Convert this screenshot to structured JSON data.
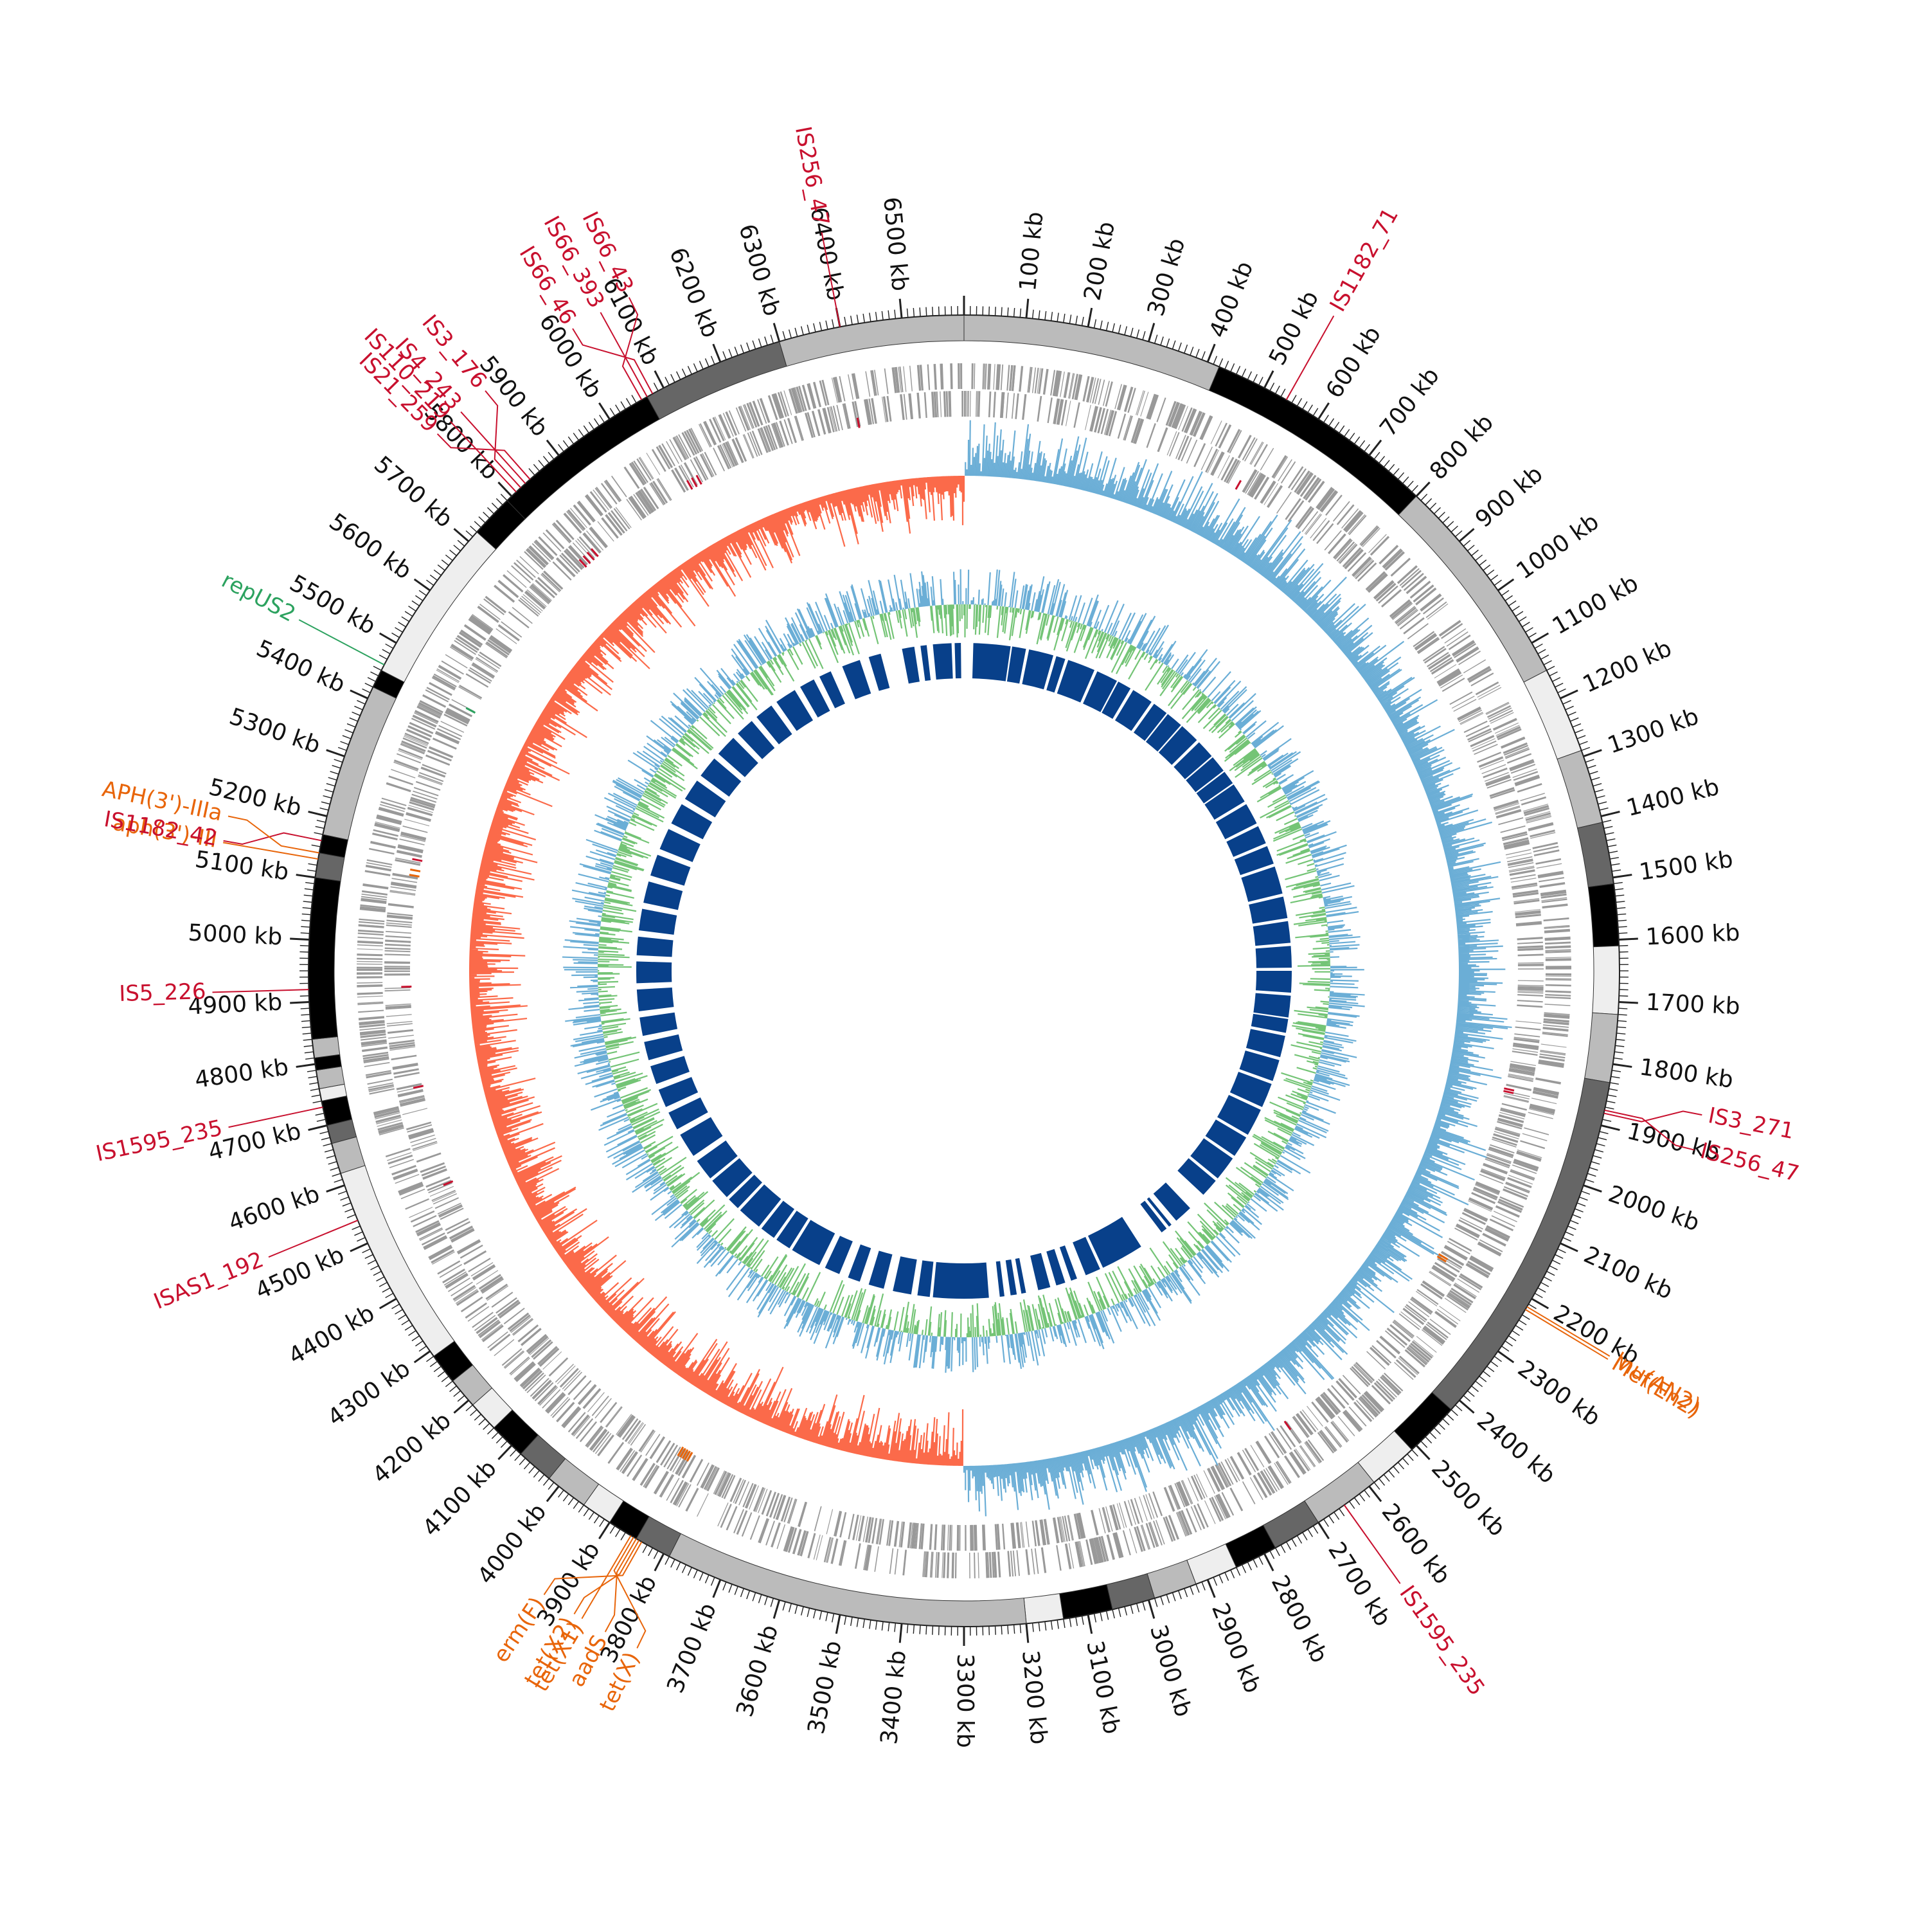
{
  "genome": {
    "total_kb": 6600,
    "tick_labels": [
      "100 kb",
      "200 kb",
      "300 kb",
      "400 kb",
      "500 kb",
      "600 kb",
      "700 kb",
      "800 kb",
      "900 kb",
      "1000 kb",
      "1100 kb",
      "1200 kb",
      "1300 kb",
      "1400 kb",
      "1500 kb",
      "1600 kb",
      "1700 kb",
      "1800 kb",
      "1900 kb",
      "2000 kb",
      "2100 kb",
      "2200 kb",
      "2300 kb",
      "2400 kb",
      "2500 kb",
      "2600 kb",
      "2700 kb",
      "2800 kb",
      "2900 kb",
      "3000 kb",
      "3100 kb",
      "3200 kb",
      "3300 kb",
      "3400 kb",
      "3500 kb",
      "3600 kb",
      "3700 kb",
      "3800 kb",
      "3900 kb",
      "4000 kb",
      "4100 kb",
      "4200 kb",
      "4300 kb",
      "4400 kb",
      "4500 kb",
      "4600 kb",
      "4700 kb",
      "4800 kb",
      "4900 kb",
      "5000 kb",
      "5100 kb",
      "5200 kb",
      "5300 kb",
      "5400 kb",
      "5500 kb",
      "5600 kb",
      "5700 kb",
      "5800 kb",
      "5900 kb",
      "6000 kb",
      "6100 kb",
      "6200 kb",
      "6300 kb",
      "6400 kb",
      "6500 kb"
    ]
  },
  "contigs": [
    {
      "start": 0,
      "end": 420,
      "shade": "#bbbbbb"
    },
    {
      "start": 420,
      "end": 800,
      "shade": "#000000"
    },
    {
      "start": 800,
      "end": 1150,
      "shade": "#bbbbbb"
    },
    {
      "start": 1150,
      "end": 1290,
      "shade": "#eeeeee"
    },
    {
      "start": 1290,
      "end": 1410,
      "shade": "#bbbbbb"
    },
    {
      "start": 1410,
      "end": 1510,
      "shade": "#666666"
    },
    {
      "start": 1510,
      "end": 1610,
      "shade": "#000000"
    },
    {
      "start": 1610,
      "end": 1720,
      "shade": "#eeeeee"
    },
    {
      "start": 1720,
      "end": 1830,
      "shade": "#bbbbbb"
    },
    {
      "start": 1830,
      "end": 2420,
      "shade": "#666666"
    },
    {
      "start": 2420,
      "end": 2510,
      "shade": "#000000"
    },
    {
      "start": 2510,
      "end": 2590,
      "shade": "#eeeeee"
    },
    {
      "start": 2590,
      "end": 2700,
      "shade": "#bbbbbb"
    },
    {
      "start": 2700,
      "end": 2780,
      "shade": "#666666"
    },
    {
      "start": 2780,
      "end": 2850,
      "shade": "#000000"
    },
    {
      "start": 2850,
      "end": 2920,
      "shade": "#eeeeee"
    },
    {
      "start": 2920,
      "end": 2990,
      "shade": "#bbbbbb"
    },
    {
      "start": 2990,
      "end": 3060,
      "shade": "#666666"
    },
    {
      "start": 3060,
      "end": 3140,
      "shade": "#000000"
    },
    {
      "start": 3140,
      "end": 3200,
      "shade": "#eeeeee"
    },
    {
      "start": 3200,
      "end": 3790,
      "shade": "#bbbbbb"
    },
    {
      "start": 3790,
      "end": 3850,
      "shade": "#666666"
    },
    {
      "start": 3850,
      "end": 3900,
      "shade": "#000000"
    },
    {
      "start": 3900,
      "end": 3950,
      "shade": "#eeeeee"
    },
    {
      "start": 3950,
      "end": 4020,
      "shade": "#bbbbbb"
    },
    {
      "start": 4020,
      "end": 4080,
      "shade": "#666666"
    },
    {
      "start": 4080,
      "end": 4140,
      "shade": "#000000"
    },
    {
      "start": 4140,
      "end": 4190,
      "shade": "#eeeeee"
    },
    {
      "start": 4190,
      "end": 4240,
      "shade": "#bbbbbb"
    },
    {
      "start": 4240,
      "end": 4290,
      "shade": "#000000"
    },
    {
      "start": 4290,
      "end": 4620,
      "shade": "#eeeeee"
    },
    {
      "start": 4620,
      "end": 4670,
      "shade": "#bbbbbb"
    },
    {
      "start": 4670,
      "end": 4700,
      "shade": "#666666"
    },
    {
      "start": 4700,
      "end": 4740,
      "shade": "#000000"
    },
    {
      "start": 4740,
      "end": 4760,
      "shade": "#eeeeee"
    },
    {
      "start": 4760,
      "end": 4790,
      "shade": "#bbbbbb"
    },
    {
      "start": 4790,
      "end": 4810,
      "shade": "#000000"
    },
    {
      "start": 4810,
      "end": 4840,
      "shade": "#bbbbbb"
    },
    {
      "start": 4840,
      "end": 5100,
      "shade": "#000000"
    },
    {
      "start": 5100,
      "end": 5140,
      "shade": "#666666"
    },
    {
      "start": 5140,
      "end": 5170,
      "shade": "#000000"
    },
    {
      "start": 5170,
      "end": 5420,
      "shade": "#bbbbbb"
    },
    {
      "start": 5420,
      "end": 5450,
      "shade": "#000000"
    },
    {
      "start": 5450,
      "end": 5720,
      "shade": "#eeeeee"
    },
    {
      "start": 5720,
      "end": 5790,
      "shade": "#000000"
    },
    {
      "start": 5790,
      "end": 6070,
      "shade": "#000000"
    },
    {
      "start": 6070,
      "end": 6300,
      "shade": "#666666"
    },
    {
      "start": 6300,
      "end": 6600,
      "shade": "#bbbbbb"
    }
  ],
  "tracks": {
    "gene_ring_color": "#999999",
    "gc_skew_positive": "#6baed6",
    "gc_skew_negative": "#fb6a4a",
    "gc_content_high": "#6baed6",
    "gc_content_low": "#74c476",
    "inner_blocks_color": "#08408a",
    "inner_blocks": [
      [
        30,
        150
      ],
      [
        155,
        200
      ],
      [
        210,
        290
      ],
      [
        300,
        330
      ],
      [
        340,
        430
      ],
      [
        440,
        510
      ],
      [
        515,
        560
      ],
      [
        570,
        640
      ],
      [
        650,
        700
      ],
      [
        705,
        760
      ],
      [
        765,
        830
      ],
      [
        840,
        900
      ],
      [
        905,
        960
      ],
      [
        965,
        1010
      ],
      [
        1015,
        1080
      ],
      [
        1090,
        1160
      ],
      [
        1170,
        1230
      ],
      [
        1240,
        1300
      ],
      [
        1310,
        1400
      ],
      [
        1410,
        1480
      ],
      [
        1490,
        1560
      ],
      [
        1570,
        1640
      ],
      [
        1650,
        1720
      ],
      [
        1730,
        1800
      ],
      [
        1805,
        1850
      ],
      [
        1860,
        1930
      ],
      [
        1940,
        2010
      ],
      [
        2020,
        2100
      ],
      [
        2110,
        2200
      ],
      [
        2210,
        2280
      ],
      [
        2290,
        2370
      ],
      [
        2380,
        2440
      ],
      [
        2500,
        2560
      ],
      [
        2580,
        2590
      ],
      [
        2600,
        2620
      ],
      [
        2700,
        2840
      ],
      [
        2850,
        2900
      ],
      [
        2930,
        2950
      ],
      [
        2970,
        3000
      ],
      [
        3020,
        3060
      ],
      [
        3100,
        3115
      ],
      [
        3130,
        3150
      ],
      [
        3170,
        3185
      ],
      [
        3220,
        3400
      ],
      [
        3410,
        3450
      ],
      [
        3470,
        3530
      ],
      [
        3560,
        3610
      ],
      [
        3640,
        3680
      ],
      [
        3710,
        3760
      ],
      [
        3780,
        3880
      ],
      [
        3890,
        3940
      ],
      [
        3950,
        4000
      ],
      [
        4010,
        4090
      ],
      [
        4100,
        4140
      ],
      [
        4150,
        4220
      ],
      [
        4230,
        4300
      ],
      [
        4320,
        4400
      ],
      [
        4420,
        4480
      ],
      [
        4500,
        4560
      ],
      [
        4580,
        4640
      ],
      [
        4660,
        4720
      ],
      [
        4740,
        4800
      ],
      [
        4820,
        4890
      ],
      [
        4910,
        4980
      ],
      [
        5000,
        5060
      ],
      [
        5080,
        5150
      ],
      [
        5170,
        5240
      ],
      [
        5260,
        5330
      ],
      [
        5350,
        5420
      ],
      [
        5440,
        5510
      ],
      [
        5530,
        5600
      ],
      [
        5620,
        5690
      ],
      [
        5710,
        5780
      ],
      [
        5800,
        5860
      ],
      [
        5880,
        5940
      ],
      [
        5960,
        6030
      ],
      [
        6050,
        6100
      ],
      [
        6120,
        6160
      ],
      [
        6200,
        6260
      ],
      [
        6290,
        6330
      ],
      [
        6400,
        6440
      ],
      [
        6460,
        6480
      ],
      [
        6500,
        6560
      ],
      [
        6570,
        6590
      ]
    ]
  },
  "annotations": [
    {
      "label": "IS256_47",
      "pos": 6400,
      "color": "#c8102e",
      "dir": -1
    },
    {
      "label": "IS66_46",
      "pos": 6080,
      "color": "#c8102e",
      "dir": -1
    },
    {
      "label": "IS66_393",
      "pos": 6070,
      "color": "#c8102e",
      "dir": -1
    },
    {
      "label": "IS66_43",
      "pos": 6060,
      "color": "#c8102e",
      "dir": -1
    },
    {
      "label": "IS21_259",
      "pos": 5840,
      "color": "#c8102e",
      "dir": -1
    },
    {
      "label": "IS4_243",
      "pos": 5830,
      "color": "#c8102e",
      "dir": -1
    },
    {
      "label": "IS3_176",
      "pos": 5820,
      "color": "#c8102e",
      "dir": -1
    },
    {
      "label": "IS110_219",
      "pos": 5810,
      "color": "#c8102e",
      "dir": -1
    },
    {
      "label": "repUS2",
      "pos": 5460,
      "color": "#2ca25f",
      "dir": -1
    },
    {
      "label": "IS1182_42",
      "pos": 5160,
      "color": "#c8102e",
      "dir": -1
    },
    {
      "label": "APH(3')-IIIa",
      "pos": 5140,
      "color": "#e8650a",
      "dir": -1
    },
    {
      "label": "aph(3')-III",
      "pos": 5130,
      "color": "#e8650a",
      "dir": -1
    },
    {
      "label": "IS5_226",
      "pos": 4920,
      "color": "#c8102e",
      "dir": -1
    },
    {
      "label": "IS1595_235",
      "pos": 4730,
      "color": "#c8102e",
      "dir": -1
    },
    {
      "label": "ISAS1_192",
      "pos": 4540,
      "color": "#c8102e",
      "dir": -1
    },
    {
      "label": "tet(X1)",
      "pos": 3860,
      "color": "#e8650a",
      "dir": -1
    },
    {
      "label": "tet(X)",
      "pos": 3855,
      "color": "#e8650a",
      "dir": -1
    },
    {
      "label": "aadS",
      "pos": 3850,
      "color": "#e8650a",
      "dir": -1
    },
    {
      "label": "tet(X2)",
      "pos": 3845,
      "color": "#e8650a",
      "dir": -1
    },
    {
      "label": "erm(F)",
      "pos": 3840,
      "color": "#e8650a",
      "dir": -1
    },
    {
      "label": "IS1595_235",
      "pos": 2650,
      "color": "#c8102e",
      "dir": 1
    },
    {
      "label": "Mef(En2)",
      "pos": 2220,
      "color": "#e8650a",
      "dir": 1
    },
    {
      "label": "lnu(AN2)",
      "pos": 2215,
      "color": "#e8650a",
      "dir": 1
    },
    {
      "label": "IS3_271",
      "pos": 1880,
      "color": "#c8102e",
      "dir": 1
    },
    {
      "label": "IS256_47",
      "pos": 1875,
      "color": "#c8102e",
      "dir": 1
    },
    {
      "label": "IS1182_71",
      "pos": 540,
      "color": "#c8102e",
      "dir": 1
    }
  ]
}
